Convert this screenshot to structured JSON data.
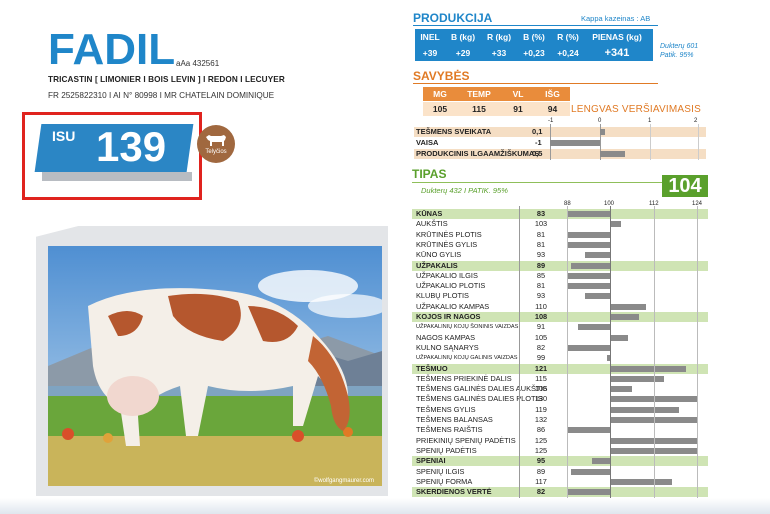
{
  "header": {
    "name": "FADIL",
    "code": "aAa 432561",
    "pedigree": "TRICASTIN [ LIMONIER  I  BOIS LEVIN ]   I  REDON I LECUYER",
    "registration": "FR 2525822310  I  AI N° 80998  I  MR CHATELAIN DOMINIQUE"
  },
  "isu": {
    "label": "ISU",
    "value": "139",
    "badge_label": "Telyčios",
    "badge_icon": "cow-icon"
  },
  "photo": {
    "credit": "©wolfgangmaurer.com"
  },
  "produkcija": {
    "title": "PRODUKCIJA",
    "kappa": "Kappa kazeinas : AB",
    "headers": [
      "INEL",
      "B (kg)",
      "R (kg)",
      "B (%)",
      "R (%)",
      "PIENAS (kg)"
    ],
    "values": [
      "+39",
      "+29",
      "+33",
      "+0,23",
      "+0,24",
      "+341"
    ],
    "daughters": "Dukterų 601",
    "reliability": "Patik. 95%"
  },
  "savybes": {
    "title": "SAVYBĖS",
    "headers": [
      "MG",
      "TEMP",
      "VL",
      "IŠG"
    ],
    "values": [
      "105",
      "115",
      "91",
      "94"
    ],
    "note": "LENGVAS VERŠIAVIMASIS"
  },
  "health": {
    "scale": [
      "-1",
      "0",
      "1",
      "2"
    ],
    "rows": [
      {
        "label": "TEŠMENS SVEIKATA",
        "value": "0,1"
      },
      {
        "label": "VAISA",
        "value": "-1"
      },
      {
        "label": "PRODUKCINIS ILGAAMŽIŠKUMAS",
        "value": "0,5"
      }
    ]
  },
  "tipas": {
    "title": "TIPAS",
    "daughters": "Dukterų 432",
    "reliability": "PATIK. 95%",
    "score": "104",
    "scale": [
      "88",
      "100",
      "112",
      "124"
    ],
    "rows": [
      {
        "label": "KŪNAS",
        "value": "83",
        "main": true
      },
      {
        "label": "AUKŠTIS",
        "value": "103"
      },
      {
        "label": "KRŪTINĖS PLOTIS",
        "value": "81"
      },
      {
        "label": "KRŪTINĖS GYLIS",
        "value": "81"
      },
      {
        "label": "KŪNO GYLIS",
        "value": "93"
      },
      {
        "label": "UŽPAKALIS",
        "value": "89",
        "main": true
      },
      {
        "label": "UŽPAKALIO ILGIS",
        "value": "85"
      },
      {
        "label": "UŽPAKALIO PLOTIS",
        "value": "81"
      },
      {
        "label": "KLUBŲ PLOTIS",
        "value": "93"
      },
      {
        "label": "UŽPAKALIO KAMPAS",
        "value": "110"
      },
      {
        "label": "KOJOS IR NAGOS",
        "value": "108",
        "main": true
      },
      {
        "label": "UŽPAKALINIŲ KOJŲ ŠONINIS VAIZDAS",
        "value": "91",
        "small": true
      },
      {
        "label": "NAGOS KAMPAS",
        "value": "105"
      },
      {
        "label": "KULNO SĄNARYS",
        "value": "82"
      },
      {
        "label": "UŽPAKALINIŲ KOJŲ GALINIS VAIZDAS",
        "value": "99",
        "small": true
      },
      {
        "label": "TEŠMUO",
        "value": "121",
        "main": true
      },
      {
        "label": "TEŠMENS PRIEKINĖ DALIS",
        "value": "115"
      },
      {
        "label": "TEŠMENS GALINĖS DALIES AUKŠTIS",
        "value": "106"
      },
      {
        "label": "TEŠMENS GALINĖS DALIES PLOTIS",
        "value": "130"
      },
      {
        "label": "TEŠMENS GYLIS",
        "value": "119"
      },
      {
        "label": "TEŠMENS BALANSAS",
        "value": "132"
      },
      {
        "label": "TEŠMENS RAIŠTIS",
        "value": "86"
      },
      {
        "label": "PRIEKINIŲ SPENIŲ PADĖTIS",
        "value": "125"
      },
      {
        "label": "SPENIŲ PADĖTIS",
        "value": "125"
      },
      {
        "label": "SPENIAI",
        "value": "95",
        "main": true
      },
      {
        "label": "SPENIŲ ILGIS",
        "value": "89"
      },
      {
        "label": "SPENIŲ FORMA",
        "value": "117"
      },
      {
        "label": "SKERDIENOS VERTĖ",
        "value": "82",
        "main": true
      }
    ]
  },
  "colors": {
    "blue": "#1f86c9",
    "orange": "#e07a25",
    "green": "#5aa02c",
    "frame_red": "#e0231e"
  }
}
